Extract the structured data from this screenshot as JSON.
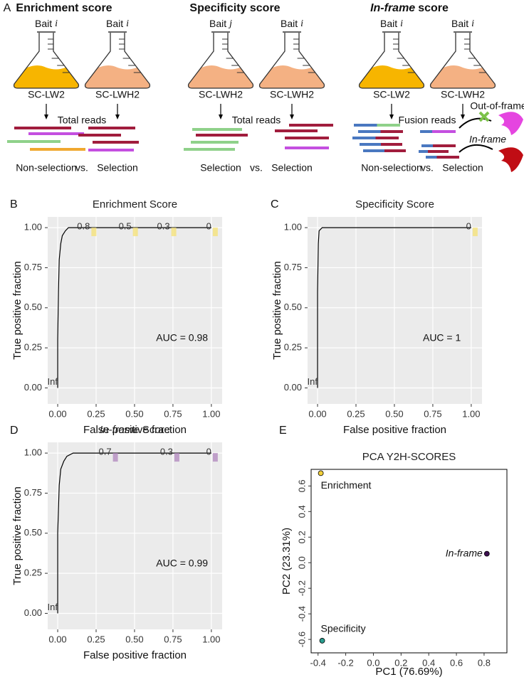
{
  "panel_a": {
    "label": "A",
    "sections": [
      {
        "title": "Enrichment score",
        "flasks": [
          {
            "bait": "Bait",
            "index": "i",
            "medium": "SC-LW2",
            "condition": "Non-selection"
          },
          {
            "bait": "Bait",
            "index": "i",
            "medium": "SC-LWH2",
            "condition": "Selection"
          }
        ],
        "reads": "Total reads",
        "vs": "vs."
      },
      {
        "title": "Specificity score",
        "flasks": [
          {
            "bait": "Bait",
            "index": "j",
            "medium": "SC-LWH2",
            "condition": "Selection"
          },
          {
            "bait": "Bait",
            "index": "i",
            "medium": "SC-LWH2",
            "condition": "Selection"
          }
        ],
        "reads": "Total reads",
        "vs": "vs."
      },
      {
        "title_italic": "In-frame",
        "title": "score",
        "flasks": [
          {
            "bait": "Bait",
            "index": "i",
            "medium": "SC-LW2",
            "condition": "Non-selection"
          },
          {
            "bait": "Bait",
            "index": "i",
            "medium": "SC-LWH2",
            "condition": "Selection"
          }
        ],
        "reads": "Fusion reads",
        "vs": "vs.",
        "out_of_frame": "Out-of-frame",
        "in_frame": "In-frame"
      }
    ]
  },
  "chart_data": [
    {
      "type": "line",
      "panel": "B",
      "title": "Enrichment Score",
      "xlabel": "False positive fraction",
      "ylabel": "True positive fraction",
      "x": [
        0,
        0,
        0.005,
        0.01,
        0.02,
        0.03,
        0.05,
        0.07,
        1
      ],
      "series": [
        {
          "color": "#000000",
          "values": [
            0,
            0.3,
            0.6,
            0.8,
            0.9,
            0.95,
            0.98,
            1,
            1
          ]
        }
      ],
      "cutoffs": [
        {
          "label": "Inf",
          "x": 0,
          "y": 0
        },
        {
          "label": "0.8",
          "x": 0.21,
          "y": 1
        },
        {
          "label": "0.5",
          "x": 0.48,
          "y": 1
        },
        {
          "label": "0.3",
          "x": 0.73,
          "y": 1
        },
        {
          "label": "0",
          "x": 1,
          "y": 1
        }
      ],
      "highlight_color": "#f5e27a",
      "annotation": "AUC = 0.98",
      "xlim": [
        -0.065,
        1.07
      ],
      "ylim": [
        -0.1,
        1.067
      ],
      "xticks": [
        {
          "value": 0,
          "label": "0.00"
        },
        0.25,
        {
          "value": 0.5,
          "label": "0.50"
        },
        0.75,
        {
          "value": 1,
          "label": "1.00"
        }
      ],
      "yticks": [
        {
          "value": 0,
          "label": "0.00"
        },
        0.25,
        {
          "value": 0.5,
          "label": "0.50"
        },
        0.75,
        {
          "value": 1,
          "label": "1.00"
        }
      ],
      "grid": true
    },
    {
      "type": "line",
      "panel": "C",
      "title": "Specificity Score",
      "xlabel": "False positive fraction",
      "ylabel": "True positive fraction",
      "x": [
        0,
        0,
        0.005,
        0.01,
        0.03,
        1
      ],
      "series": [
        {
          "color": "#000000",
          "values": [
            0,
            0.6,
            0.9,
            0.98,
            1,
            1
          ]
        }
      ],
      "cutoffs": [
        {
          "label": "Inf",
          "x": 0,
          "y": 0
        },
        {
          "label": "0",
          "x": 1,
          "y": 1
        }
      ],
      "highlight_color": "#f5e27a",
      "annotation": "AUC = 1",
      "xlim": [
        -0.065,
        1.07
      ],
      "ylim": [
        -0.1,
        1.067
      ],
      "xticks": [
        {
          "value": 0,
          "label": "0.00"
        },
        0.25,
        {
          "value": 0.5,
          "label": "0.50"
        },
        0.75,
        {
          "value": 1,
          "label": "1.00"
        }
      ],
      "yticks": [
        {
          "value": 0,
          "label": "0.00"
        },
        0.25,
        {
          "value": 0.5,
          "label": "0.50"
        },
        0.75,
        {
          "value": 1,
          "label": "1.00"
        }
      ],
      "grid": true
    },
    {
      "type": "line",
      "panel": "D",
      "title_italic": "In-frame",
      "title": "Score",
      "xlabel": "False positive fraction",
      "ylabel": "True positive fraction",
      "x": [
        0,
        0,
        0.01,
        0.02,
        0.04,
        0.06,
        0.1,
        1
      ],
      "series": [
        {
          "color": "#000000",
          "values": [
            0,
            0.5,
            0.8,
            0.9,
            0.95,
            0.98,
            1,
            1
          ]
        }
      ],
      "cutoffs": [
        {
          "label": "Inf",
          "x": 0,
          "y": 0
        },
        {
          "label": "0.7",
          "x": 0.35,
          "y": 1
        },
        {
          "label": "0.3",
          "x": 0.75,
          "y": 1
        },
        {
          "label": "0",
          "x": 1,
          "y": 1
        }
      ],
      "highlight_color": "#b48cc0",
      "annotation": "AUC = 0.99",
      "xlim": [
        -0.065,
        1.07
      ],
      "ylim": [
        -0.1,
        1.067
      ],
      "xticks": [
        {
          "value": 0,
          "label": "0.00"
        },
        0.25,
        {
          "value": 0.5,
          "label": "0.50"
        },
        0.75,
        {
          "value": 1,
          "label": "1.00"
        }
      ],
      "yticks": [
        {
          "value": 0,
          "label": "0.00"
        },
        0.25,
        {
          "value": 0.5,
          "label": "0.50"
        },
        0.75,
        {
          "value": 1,
          "label": "1.00"
        }
      ],
      "grid": true
    },
    {
      "type": "scatter",
      "panel": "E",
      "title": "PCA  Y2H-SCORES",
      "xlabel": "PC1 (76.69%)",
      "ylabel": "PC2 (23.31%)",
      "labels": [
        "Enrichment",
        "In-frame",
        "Specificity"
      ],
      "x": [
        -0.38,
        0.82,
        -0.37
      ],
      "values": [
        0.7,
        0.07,
        -0.61
      ],
      "colors": [
        "#f3d03a",
        "#3b0f4f",
        "#2a9d8f"
      ],
      "xlim": [
        -0.45,
        0.965
      ],
      "ylim": [
        -0.705,
        0.73
      ],
      "xticks": [
        -0.4,
        -0.2,
        {
          "value": 0,
          "label": "0.0"
        },
        0.2,
        0.4,
        0.6,
        0.8
      ],
      "yticks": [
        -0.6,
        -0.4,
        -0.2,
        {
          "value": 0,
          "label": "0.0"
        },
        0.2,
        0.4,
        0.6
      ],
      "grid": false
    }
  ]
}
